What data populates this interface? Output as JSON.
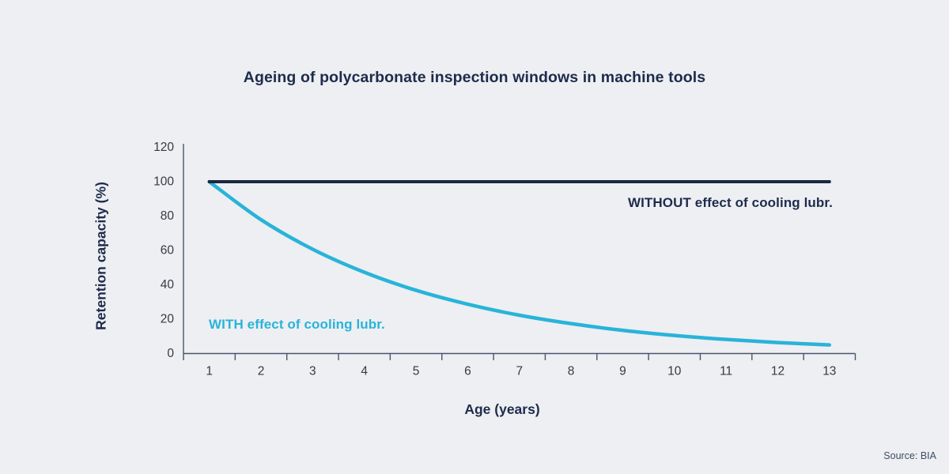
{
  "chart_data": {
    "type": "line",
    "title": "Ageing of polycarbonate inspection windows in machine tools",
    "xlabel": "Age (years)",
    "ylabel": "Retention capacity (%)",
    "source": "Source: BIA",
    "x": [
      1,
      2,
      3,
      4,
      5,
      6,
      7,
      8,
      9,
      10,
      11,
      12,
      13
    ],
    "xtick_labels": [
      "1",
      "2",
      "3",
      "4",
      "5",
      "6",
      "7",
      "8",
      "9",
      "10",
      "11",
      "12",
      "13"
    ],
    "yticks": [
      0,
      20,
      40,
      60,
      80,
      100,
      120
    ],
    "ylim": [
      0,
      120
    ],
    "grid": false,
    "legend_position": "inline-annotations",
    "series": [
      {
        "name": "WITHOUT effect of cooling lubr.",
        "label": "WITHOUT effect of cooling lubr.",
        "color": "#1b2840",
        "line_width": 4,
        "smooth": false,
        "values": [
          100,
          100,
          100,
          100,
          100,
          100,
          100,
          100,
          100,
          100,
          100,
          100,
          100
        ]
      },
      {
        "name": "WITH effect of cooling lubr.",
        "label": "WITH effect of cooling lubr.",
        "color": "#29b3d9",
        "line_width": 4.5,
        "smooth": true,
        "values": [
          100,
          77.9,
          60.7,
          47.3,
          36.8,
          28.7,
          22.3,
          17.4,
          13.5,
          10.5,
          8.2,
          6.4,
          5
        ]
      }
    ],
    "colors": {
      "background": "#edeff2",
      "axis": "#4a556c",
      "tick_text": "#36393f",
      "heading_text": "#1e2b4c"
    }
  }
}
